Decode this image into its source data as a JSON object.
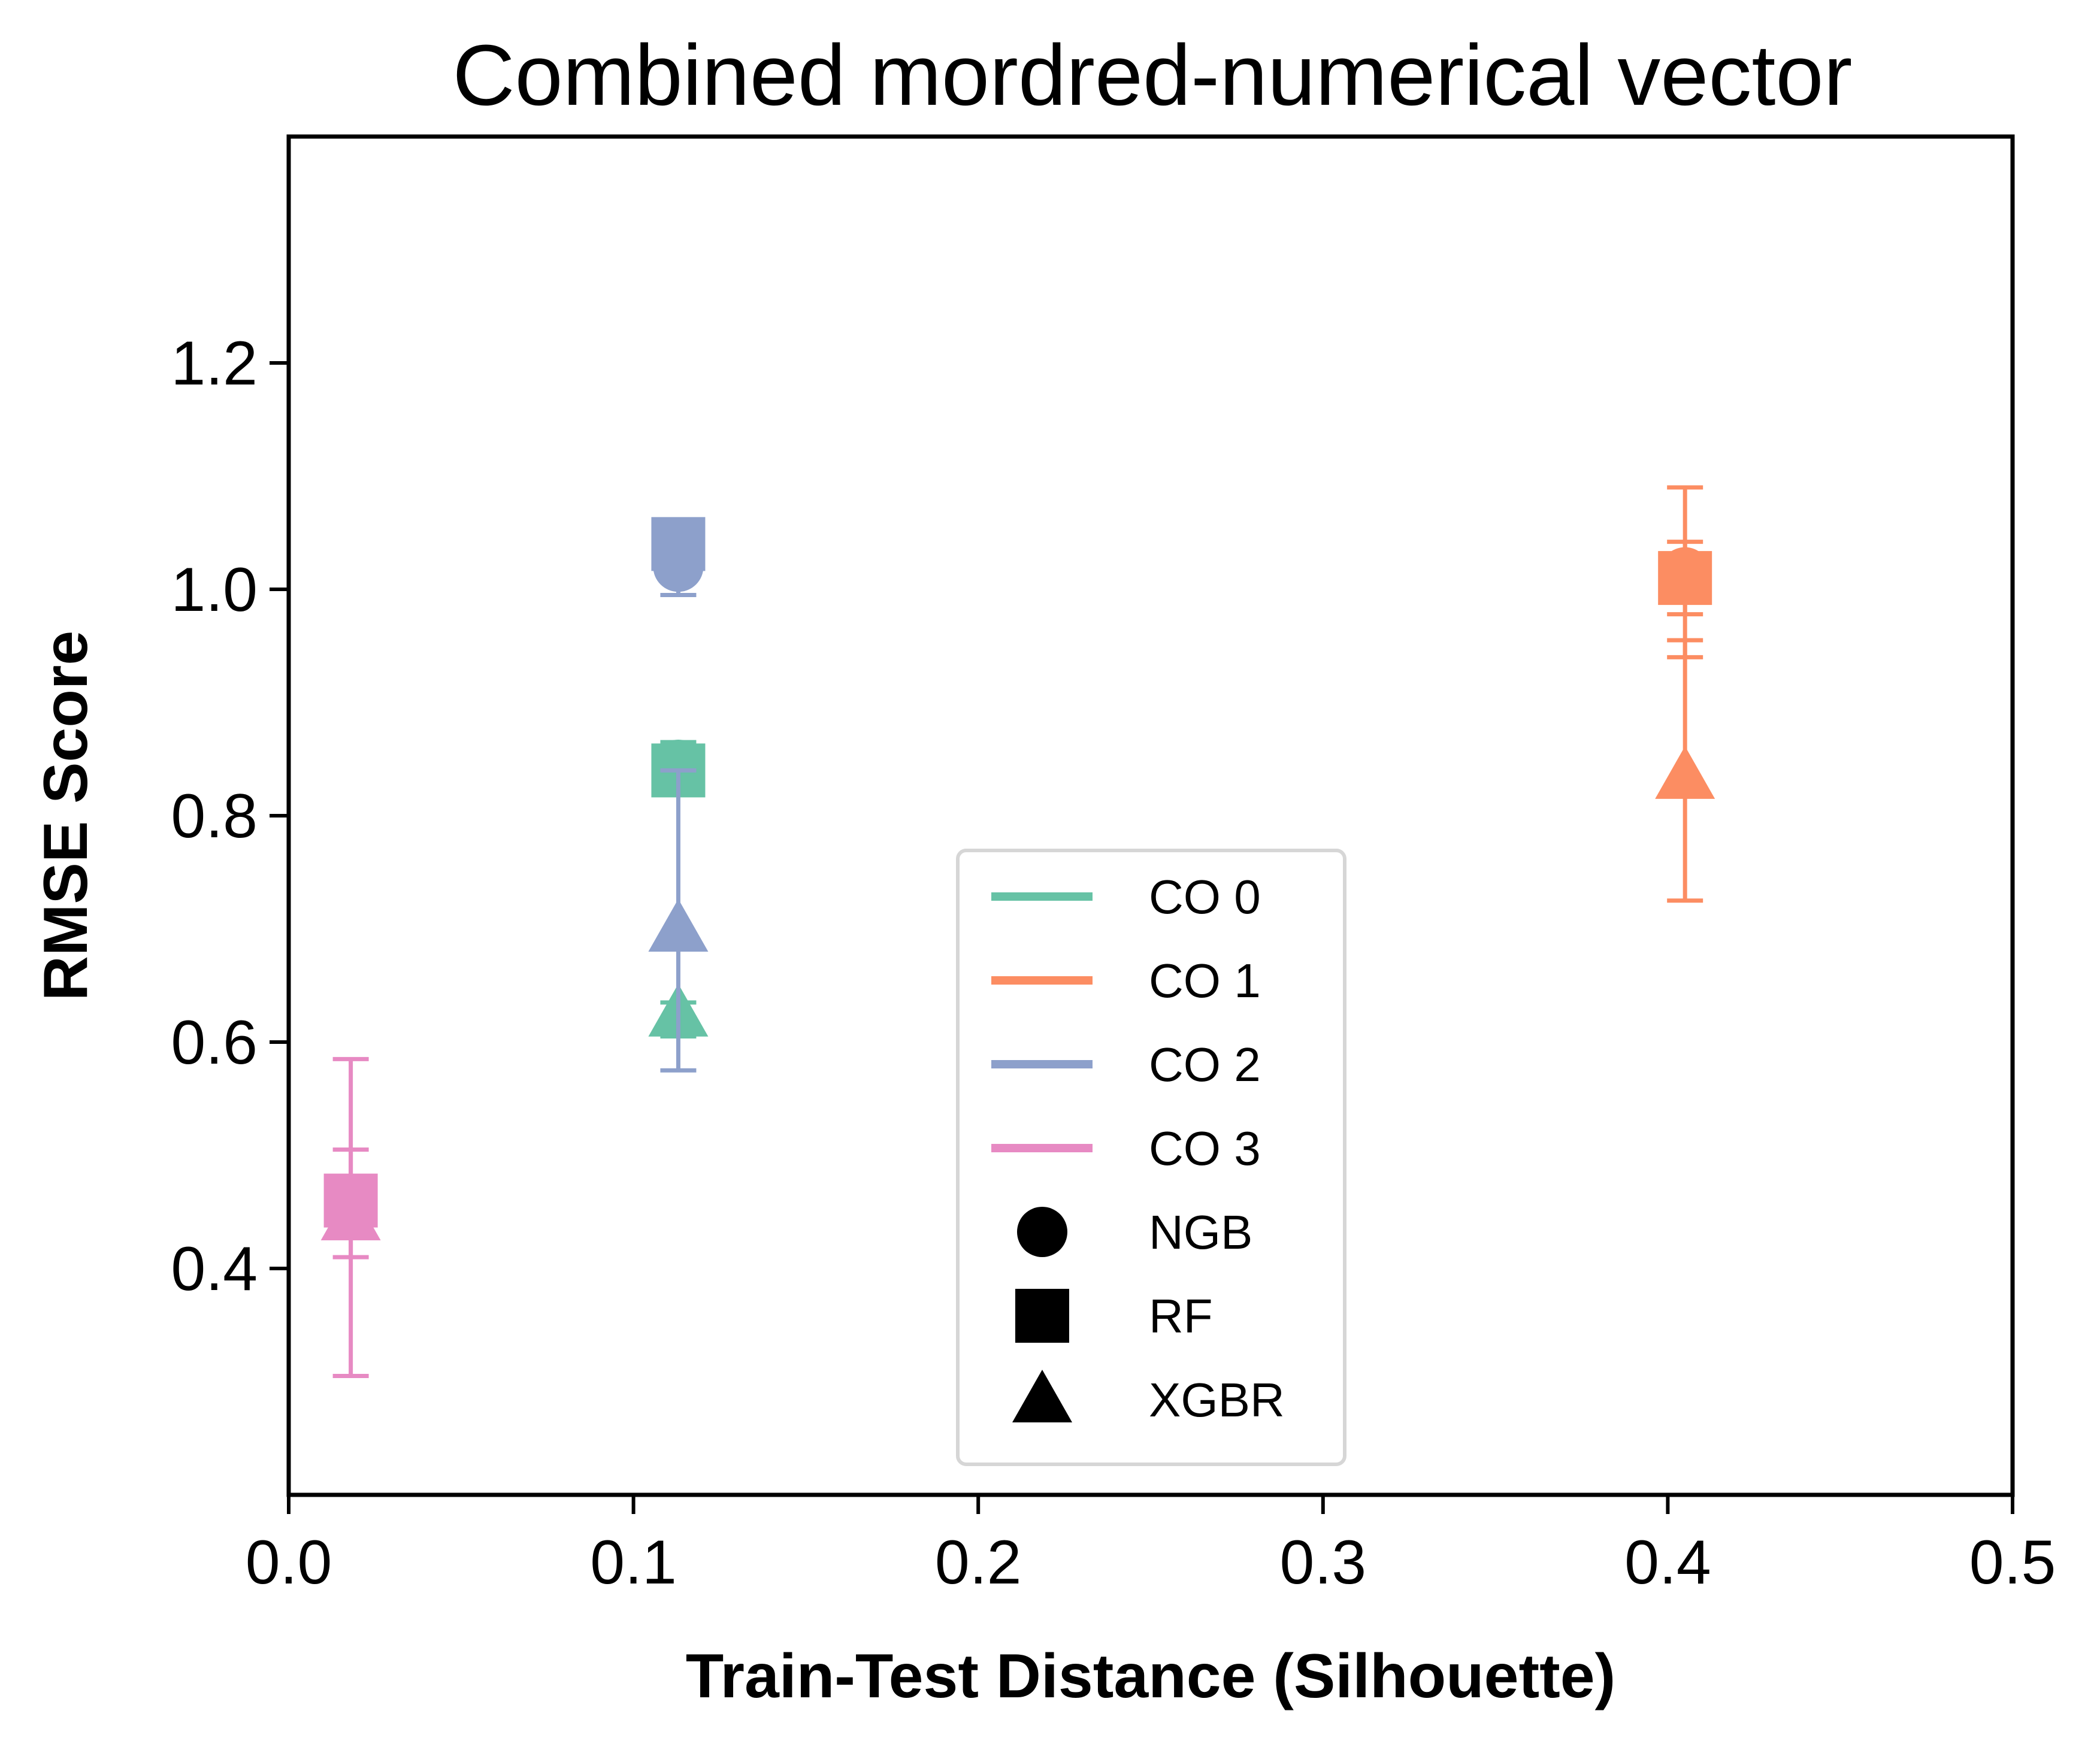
{
  "chart_data": {
    "type": "scatter",
    "title": "Combined mordred-numerical vector",
    "xlabel": "Train-Test Distance (Silhouette)",
    "ylabel": "RMSE Score",
    "xlim": [
      0.0,
      0.5
    ],
    "ylim": [
      0.2,
      1.4
    ],
    "xticks": [
      0.0,
      0.1,
      0.2,
      0.3,
      0.4,
      0.5
    ],
    "xtick_labels": [
      "0.0",
      "0.1",
      "0.2",
      "0.3",
      "0.4",
      "0.5"
    ],
    "yticks": [
      0.4,
      0.6,
      0.8,
      1.0,
      1.2
    ],
    "ytick_labels": [
      "0.4",
      "0.6",
      "0.8",
      "1.0",
      "1.2"
    ],
    "grid": false,
    "legend_position": "lower-center",
    "series": [
      {
        "name": "CO 0",
        "color": "#66c2a5",
        "points": [
          {
            "model": "NGB",
            "x": 0.113,
            "y": 0.845,
            "yerr_low": 0.825,
            "yerr_high": 0.865
          },
          {
            "model": "RF",
            "x": 0.113,
            "y": 0.84,
            "yerr_low": 0.82,
            "yerr_high": 0.86
          },
          {
            "model": "XGBR",
            "x": 0.113,
            "y": 0.625,
            "yerr_low": 0.605,
            "yerr_high": 0.635
          }
        ]
      },
      {
        "name": "CO 1",
        "color": "#fc8d62",
        "points": [
          {
            "model": "NGB",
            "x": 0.405,
            "y": 1.015,
            "yerr_low": 0.94,
            "yerr_high": 1.09
          },
          {
            "model": "RF",
            "x": 0.405,
            "y": 1.01,
            "yerr_low": 0.978,
            "yerr_high": 1.042
          },
          {
            "model": "XGBR",
            "x": 0.405,
            "y": 0.835,
            "yerr_low": 0.725,
            "yerr_high": 0.955
          }
        ]
      },
      {
        "name": "CO 2",
        "color": "#8da0cb",
        "points": [
          {
            "model": "NGB",
            "x": 0.113,
            "y": 1.02,
            "yerr_low": 0.995,
            "yerr_high": 1.045
          },
          {
            "model": "RF",
            "x": 0.113,
            "y": 1.04,
            "yerr_low": 1.025,
            "yerr_high": 1.055
          },
          {
            "model": "XGBR",
            "x": 0.113,
            "y": 0.7,
            "yerr_low": 0.575,
            "yerr_high": 0.84
          }
        ]
      },
      {
        "name": "CO 3",
        "color": "#e78ac3",
        "points": [
          {
            "model": "NGB",
            "x": 0.018,
            "y": 0.455,
            "yerr_low": 0.43,
            "yerr_high": 0.48
          },
          {
            "model": "RF",
            "x": 0.018,
            "y": 0.46,
            "yerr_low": 0.41,
            "yerr_high": 0.505
          },
          {
            "model": "XGBR",
            "x": 0.018,
            "y": 0.445,
            "yerr_low": 0.305,
            "yerr_high": 0.585
          }
        ]
      }
    ],
    "legend": {
      "color_entries": [
        {
          "label": "CO 0",
          "color": "#66c2a5"
        },
        {
          "label": "CO 1",
          "color": "#fc8d62"
        },
        {
          "label": "CO 2",
          "color": "#8da0cb"
        },
        {
          "label": "CO 3",
          "color": "#e78ac3"
        }
      ],
      "marker_entries": [
        {
          "label": "NGB",
          "marker": "circle"
        },
        {
          "label": "RF",
          "marker": "square"
        },
        {
          "label": "XGBR",
          "marker": "triangle"
        }
      ]
    }
  }
}
